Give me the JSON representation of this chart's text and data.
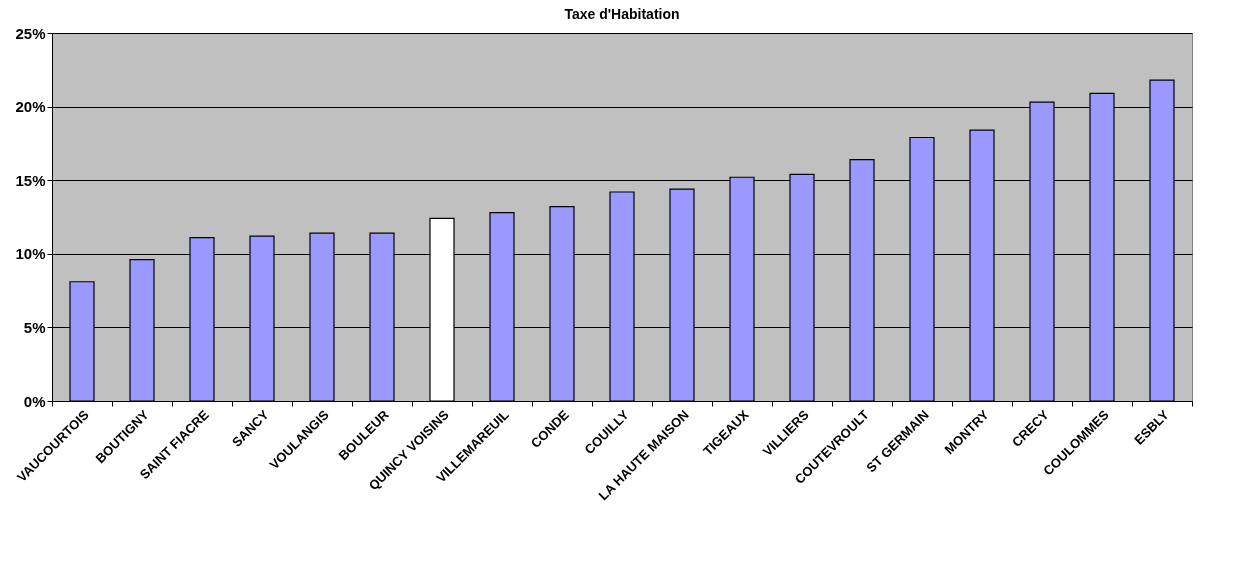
{
  "chart_data": {
    "type": "bar",
    "title": "Taxe d'Habitation",
    "categories": [
      "VAUCOURTOIS",
      "BOUTIGNY",
      "SAINT FIACRE",
      "SANCY",
      "VOULANGIS",
      "BOULEUR",
      "QUINCY VOISINS",
      "VILLEMAREUIL",
      "CONDE",
      "COUILLY",
      "LA HAUTE MAISON",
      "TIGEAUX",
      "VILLIERS",
      "COUTEVROULT",
      "ST GERMAIN",
      "MONTRY",
      "CRECY",
      "COULOMMES",
      "ESBLY"
    ],
    "values": [
      8.1,
      9.6,
      11.1,
      11.2,
      11.4,
      11.4,
      12.4,
      12.8,
      13.2,
      14.2,
      14.4,
      15.2,
      15.4,
      16.4,
      17.9,
      18.4,
      20.3,
      20.9,
      21.8
    ],
    "colors": [
      "#9999ff",
      "#9999ff",
      "#9999ff",
      "#9999ff",
      "#9999ff",
      "#9999ff",
      "#ffffff",
      "#9999ff",
      "#9999ff",
      "#9999ff",
      "#9999ff",
      "#9999ff",
      "#9999ff",
      "#9999ff",
      "#9999ff",
      "#9999ff",
      "#9999ff",
      "#9999ff",
      "#9999ff"
    ],
    "ylim": [
      0,
      25
    ],
    "yticks": [
      {
        "value": 0,
        "label": "0%"
      },
      {
        "value": 5,
        "label": "5%"
      },
      {
        "value": 10,
        "label": "10%"
      },
      {
        "value": 15,
        "label": "15%"
      },
      {
        "value": 20,
        "label": "20%"
      },
      {
        "value": 25,
        "label": "25%"
      }
    ],
    "grid": "y"
  }
}
